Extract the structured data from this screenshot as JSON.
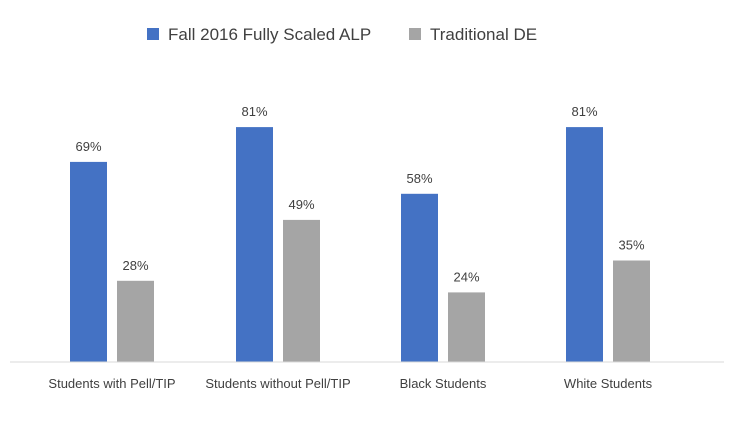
{
  "chart_data": {
    "type": "bar",
    "title": "",
    "xlabel": "",
    "ylabel": "",
    "ylim": [
      0,
      100
    ],
    "grid": false,
    "legend_position": "top-center",
    "categories": [
      "Students with Pell/TIP",
      "Students without Pell/TIP",
      "Black Students",
      "White Students"
    ],
    "series": [
      {
        "name": "Fall 2016 Fully Scaled ALP",
        "color": "#4472C4",
        "values": [
          69,
          81,
          58,
          81
        ],
        "labels": [
          "69%",
          "81%",
          "58%",
          "81%"
        ]
      },
      {
        "name": "Traditional DE",
        "color": "#A5A5A5",
        "values": [
          28,
          49,
          24,
          35
        ],
        "labels": [
          "28%",
          "49%",
          "24%",
          "35%"
        ]
      }
    ]
  }
}
